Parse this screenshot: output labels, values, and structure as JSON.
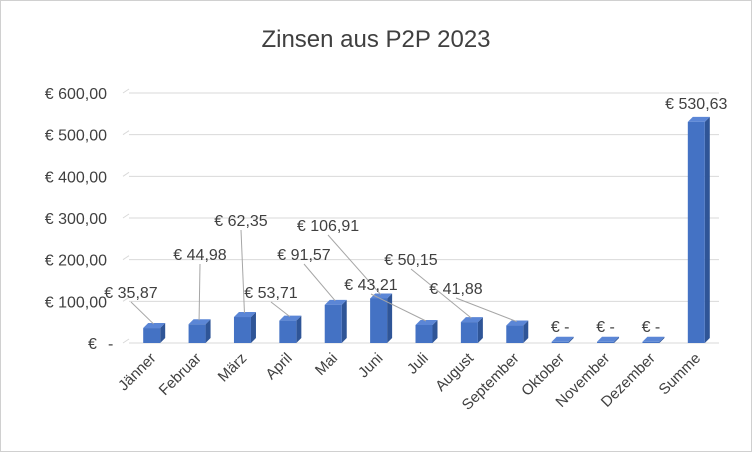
{
  "chart_data": {
    "type": "bar",
    "title": "Zinsen  aus P2P 2023",
    "categories": [
      "Jänner",
      "Februar",
      "März",
      "April",
      "Mai",
      "Juni",
      "Juli",
      "August",
      "September",
      "Oktober",
      "November",
      "Dezember",
      "Summe"
    ],
    "values": [
      35.87,
      44.98,
      62.35,
      53.71,
      91.57,
      106.91,
      43.21,
      50.15,
      41.88,
      0,
      0,
      0,
      530.63
    ],
    "data_labels": [
      "€ 35,87",
      "€ 44,98",
      "€ 62,35",
      "€ 53,71",
      "€ 91,57",
      "€ 106,91",
      "€ 43,21",
      "€ 50,15",
      "€ 41,88",
      "€ -",
      "€ -",
      "€ -",
      "€ 530,63"
    ],
    "y_ticks": [
      0,
      100,
      200,
      300,
      400,
      500,
      600
    ],
    "y_tick_labels": [
      "€ -",
      "€ 100,00",
      "€ 200,00",
      "€ 300,00",
      "€ 400,00",
      "€ 500,00",
      "€ 600,00"
    ],
    "ylim": [
      0,
      600
    ],
    "grid": true,
    "bar_color": "#4472c4",
    "xlabel": "",
    "ylabel": ""
  }
}
